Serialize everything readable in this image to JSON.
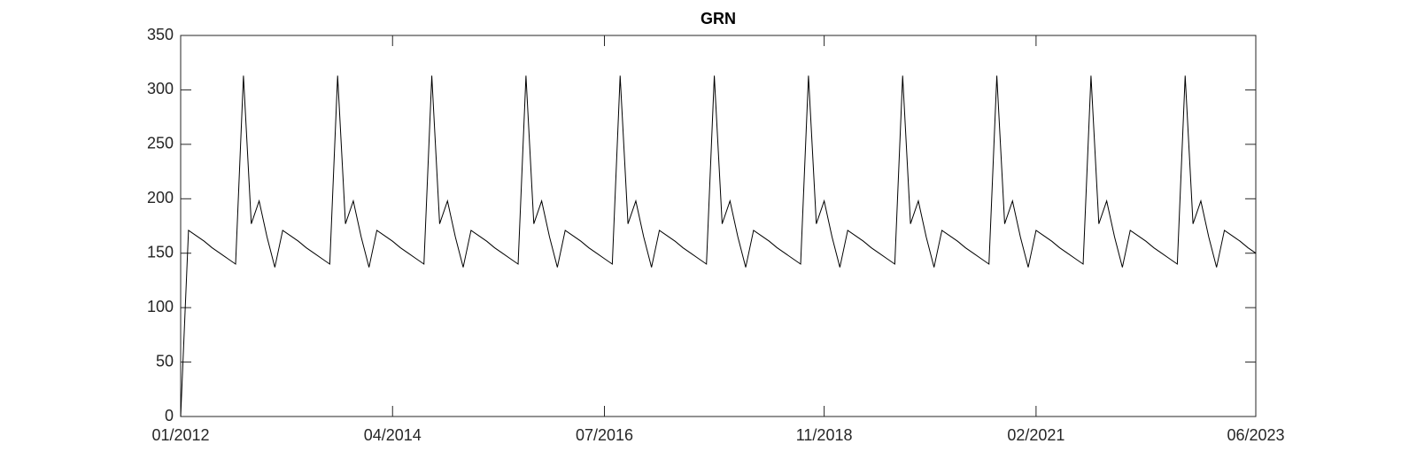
{
  "chart_data": {
    "type": "line",
    "title": "GRN",
    "x": [
      "01/2012",
      "02/2012",
      "03/2012",
      "04/2012",
      "05/2012",
      "06/2012",
      "07/2012",
      "08/2012",
      "09/2012",
      "10/2012",
      "11/2012",
      "12/2012",
      "01/2013",
      "02/2013",
      "03/2013",
      "04/2013",
      "05/2013",
      "06/2013",
      "07/2013",
      "08/2013",
      "09/2013",
      "10/2013",
      "11/2013",
      "12/2013",
      "01/2014",
      "02/2014",
      "03/2014",
      "04/2014",
      "05/2014",
      "06/2014",
      "07/2014",
      "08/2014",
      "09/2014",
      "10/2014",
      "11/2014",
      "12/2014",
      "01/2015",
      "02/2015",
      "03/2015",
      "04/2015",
      "05/2015",
      "06/2015",
      "07/2015",
      "08/2015",
      "09/2015",
      "10/2015",
      "11/2015",
      "12/2015",
      "01/2016",
      "02/2016",
      "03/2016",
      "04/2016",
      "05/2016",
      "06/2016",
      "07/2016",
      "08/2016",
      "09/2016",
      "10/2016",
      "11/2016",
      "12/2016",
      "01/2017",
      "02/2017",
      "03/2017",
      "04/2017",
      "05/2017",
      "06/2017",
      "07/2017",
      "08/2017",
      "09/2017",
      "10/2017",
      "11/2017",
      "12/2017",
      "01/2018",
      "02/2018",
      "03/2018",
      "04/2018",
      "05/2018",
      "06/2018",
      "07/2018",
      "08/2018",
      "09/2018",
      "10/2018",
      "11/2018",
      "12/2018",
      "01/2019",
      "02/2019",
      "03/2019",
      "04/2019",
      "05/2019",
      "06/2019",
      "07/2019",
      "08/2019",
      "09/2019",
      "10/2019",
      "11/2019",
      "12/2019",
      "01/2020",
      "02/2020",
      "03/2020",
      "04/2020",
      "05/2020",
      "06/2020",
      "07/2020",
      "08/2020",
      "09/2020",
      "10/2020",
      "11/2020",
      "12/2020",
      "01/2021",
      "02/2021",
      "03/2021",
      "04/2021",
      "05/2021",
      "06/2021",
      "07/2021",
      "08/2021",
      "09/2021",
      "10/2021",
      "11/2021",
      "12/2021",
      "01/2022",
      "02/2022",
      "03/2022",
      "04/2022",
      "05/2022",
      "06/2022",
      "07/2022",
      "08/2022",
      "09/2022",
      "10/2022",
      "11/2022",
      "12/2022",
      "01/2023",
      "02/2023",
      "03/2023",
      "04/2023",
      "05/2023",
      "06/2023"
    ],
    "series": [
      {
        "color": "#000000",
        "values": [
          0,
          171,
          166,
          161,
          155,
          150,
          145,
          140,
          313,
          177,
          198,
          165,
          137,
          171,
          166,
          161,
          155,
          150,
          145,
          140,
          313,
          177,
          198,
          165,
          137,
          171,
          166,
          161,
          155,
          150,
          145,
          140,
          313,
          177,
          198,
          165,
          137,
          171,
          166,
          161,
          155,
          150,
          145,
          140,
          313,
          177,
          198,
          165,
          137,
          171,
          166,
          161,
          155,
          150,
          145,
          140,
          313,
          177,
          198,
          165,
          137,
          171,
          166,
          161,
          155,
          150,
          145,
          140,
          313,
          177,
          198,
          165,
          137,
          171,
          166,
          161,
          155,
          150,
          145,
          140,
          313,
          177,
          198,
          165,
          137,
          171,
          166,
          161,
          155,
          150,
          145,
          140,
          313,
          177,
          198,
          165,
          137,
          171,
          166,
          161,
          155,
          150,
          145,
          140,
          313,
          177,
          198,
          165,
          137,
          171,
          166,
          161,
          155,
          150,
          145,
          140,
          313,
          177,
          198,
          165,
          137,
          171,
          166,
          161,
          155,
          150,
          145,
          140,
          313,
          177,
          198,
          165,
          137,
          171,
          166,
          161,
          155,
          150
        ]
      }
    ],
    "xticks": [
      "01/2012",
      "04/2014",
      "07/2016",
      "11/2018",
      "02/2021",
      "06/2023"
    ],
    "ylim": [
      0,
      350
    ],
    "yticks": [
      0,
      50,
      100,
      150,
      200,
      250,
      300,
      350
    ],
    "grid": false
  }
}
